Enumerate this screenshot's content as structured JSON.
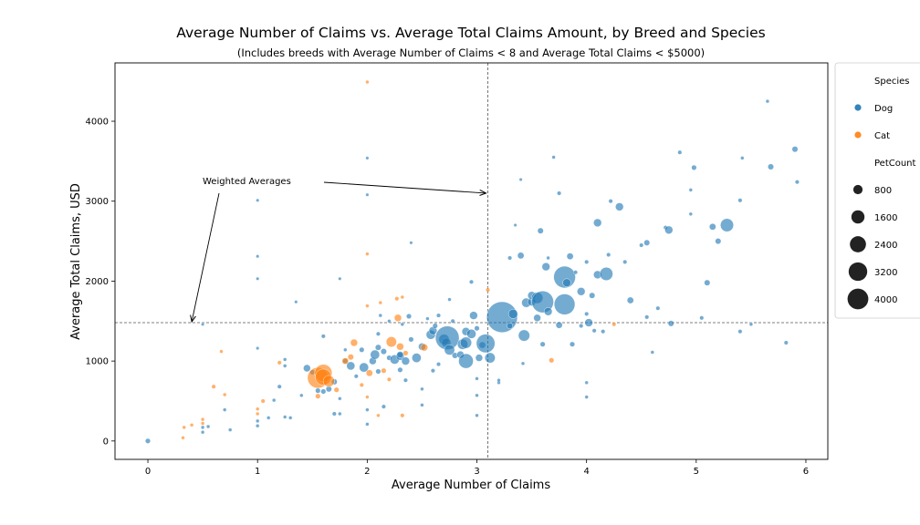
{
  "chart_data": {
    "type": "scatter",
    "title": "Average Number of Claims vs. Average Total Claims Amount, by Breed and Species",
    "subtitle": "(Includes breeds with Average Number of Claims < 8 and Average Total Claims < $5000)",
    "xlabel": "Average Number of Claims",
    "ylabel": "Average Total Claims, USD",
    "xlim": [
      -0.3,
      6.2
    ],
    "ylim": [
      -230,
      4730
    ],
    "xticks": [
      0,
      1,
      2,
      3,
      4,
      5,
      6
    ],
    "yticks": [
      0,
      1000,
      2000,
      3000,
      4000
    ],
    "grid": false,
    "reference_lines": {
      "x": 3.1,
      "y": 1480
    },
    "annotation": {
      "text": "Weighted Averages",
      "x": 0.5,
      "y": 3230
    },
    "legend": {
      "placement": "right",
      "species_title": "Species",
      "species": [
        {
          "name": "Dog",
          "color": "#1f77b4"
        },
        {
          "name": "Cat",
          "color": "#ff7f0e"
        }
      ],
      "size_title": "PetCount",
      "sizes": [
        800,
        1600,
        2400,
        3200,
        4000
      ]
    },
    "series": [
      {
        "name": "Dog",
        "color": "#1f77b4",
        "points": [
          [
            0,
            0,
            60
          ],
          [
            0.5,
            1460,
            20
          ],
          [
            0.7,
            390,
            30
          ],
          [
            0.75,
            140,
            30
          ],
          [
            0.5,
            170,
            30
          ],
          [
            0.5,
            110,
            30
          ],
          [
            0.55,
            180,
            30
          ],
          [
            1.0,
            3010,
            20
          ],
          [
            1.0,
            2310,
            20
          ],
          [
            1.0,
            2030,
            20
          ],
          [
            1.0,
            1160,
            20
          ],
          [
            1.0,
            250,
            30
          ],
          [
            1.0,
            190,
            30
          ],
          [
            1.1,
            290,
            30
          ],
          [
            1.15,
            510,
            30
          ],
          [
            1.2,
            680,
            40
          ],
          [
            1.25,
            940,
            30
          ],
          [
            1.25,
            1020,
            30
          ],
          [
            1.25,
            300,
            30
          ],
          [
            1.3,
            290,
            30
          ],
          [
            1.35,
            1740,
            20
          ],
          [
            1.4,
            570,
            30
          ],
          [
            1.45,
            910,
            120
          ],
          [
            1.5,
            860,
            60
          ],
          [
            1.55,
            630,
            60
          ],
          [
            1.6,
            1310,
            40
          ],
          [
            1.6,
            620,
            60
          ],
          [
            1.65,
            650,
            80
          ],
          [
            1.7,
            740,
            80
          ],
          [
            1.7,
            340,
            40
          ],
          [
            1.75,
            340,
            30
          ],
          [
            1.75,
            530,
            30
          ],
          [
            1.75,
            2030,
            20
          ],
          [
            1.8,
            1000,
            60
          ],
          [
            1.8,
            1140,
            30
          ],
          [
            1.85,
            940,
            160
          ],
          [
            1.9,
            810,
            40
          ],
          [
            1.95,
            1140,
            60
          ],
          [
            1.97,
            920,
            200
          ],
          [
            2.0,
            3540,
            20
          ],
          [
            2.0,
            3080,
            20
          ],
          [
            2.0,
            390,
            30
          ],
          [
            2.0,
            210,
            30
          ],
          [
            2.05,
            1000,
            120
          ],
          [
            2.07,
            1080,
            200
          ],
          [
            2.1,
            1340,
            40
          ],
          [
            2.1,
            1170,
            80
          ],
          [
            2.1,
            870,
            60
          ],
          [
            2.12,
            1570,
            30
          ],
          [
            2.15,
            1120,
            80
          ],
          [
            2.15,
            430,
            40
          ],
          [
            2.2,
            1500,
            30
          ],
          [
            2.2,
            1040,
            60
          ],
          [
            2.25,
            1020,
            200
          ],
          [
            2.3,
            1060,
            150
          ],
          [
            2.3,
            1080,
            100
          ],
          [
            2.3,
            890,
            60
          ],
          [
            2.32,
            1460,
            30
          ],
          [
            2.35,
            1000,
            150
          ],
          [
            2.35,
            760,
            40
          ],
          [
            2.38,
            1560,
            60
          ],
          [
            2.4,
            2480,
            20
          ],
          [
            2.4,
            1270,
            60
          ],
          [
            2.45,
            1040,
            200
          ],
          [
            2.5,
            1180,
            120
          ],
          [
            2.5,
            650,
            30
          ],
          [
            2.5,
            450,
            30
          ],
          [
            2.55,
            1530,
            30
          ],
          [
            2.58,
            1330,
            200
          ],
          [
            2.6,
            1380,
            150
          ],
          [
            2.6,
            880,
            40
          ],
          [
            2.62,
            1440,
            60
          ],
          [
            2.65,
            1570,
            40
          ],
          [
            2.65,
            960,
            40
          ],
          [
            2.7,
            1270,
            250
          ],
          [
            2.72,
            1230,
            200
          ],
          [
            2.73,
            1290,
            1300
          ],
          [
            2.75,
            1140,
            250
          ],
          [
            2.78,
            1500,
            40
          ],
          [
            2.75,
            1770,
            30
          ],
          [
            2.8,
            1070,
            80
          ],
          [
            2.85,
            1080,
            120
          ],
          [
            2.87,
            1210,
            250
          ],
          [
            2.9,
            1370,
            150
          ],
          [
            2.9,
            1230,
            300
          ],
          [
            2.9,
            1000,
            500
          ],
          [
            2.95,
            1990,
            40
          ],
          [
            2.95,
            1340,
            200
          ],
          [
            2.97,
            1570,
            150
          ],
          [
            3.0,
            780,
            30
          ],
          [
            3.0,
            570,
            30
          ],
          [
            3.0,
            320,
            30
          ],
          [
            3.0,
            1410,
            60
          ],
          [
            3.02,
            1040,
            120
          ],
          [
            3.05,
            1200,
            100
          ],
          [
            3.08,
            1220,
            800
          ],
          [
            3.12,
            1040,
            250
          ],
          [
            3.2,
            730,
            30
          ],
          [
            3.2,
            760,
            30
          ],
          [
            3.23,
            1550,
            2200
          ],
          [
            3.3,
            2290,
            40
          ],
          [
            3.3,
            1440,
            80
          ],
          [
            3.33,
            1590,
            200
          ],
          [
            3.35,
            2700,
            20
          ],
          [
            3.4,
            3270,
            20
          ],
          [
            3.4,
            2320,
            100
          ],
          [
            3.42,
            970,
            30
          ],
          [
            3.43,
            1320,
            300
          ],
          [
            3.45,
            1730,
            200
          ],
          [
            3.5,
            1740,
            150
          ],
          [
            3.5,
            1820,
            150
          ],
          [
            3.55,
            1790,
            300
          ],
          [
            3.55,
            1540,
            120
          ],
          [
            3.6,
            1740,
            1100
          ],
          [
            3.58,
            2630,
            80
          ],
          [
            3.6,
            1210,
            60
          ],
          [
            3.63,
            2180,
            150
          ],
          [
            3.65,
            2290,
            30
          ],
          [
            3.65,
            1620,
            150
          ],
          [
            3.7,
            3550,
            30
          ],
          [
            3.75,
            3100,
            40
          ],
          [
            3.75,
            1450,
            100
          ],
          [
            3.8,
            2050,
            1100
          ],
          [
            3.8,
            1710,
            1000
          ],
          [
            3.82,
            1980,
            150
          ],
          [
            3.85,
            2310,
            100
          ],
          [
            3.87,
            1210,
            60
          ],
          [
            3.9,
            2110,
            40
          ],
          [
            3.95,
            1870,
            150
          ],
          [
            3.95,
            1440,
            40
          ],
          [
            4.0,
            730,
            30
          ],
          [
            4.0,
            550,
            30
          ],
          [
            4.0,
            1590,
            40
          ],
          [
            4.0,
            2240,
            40
          ],
          [
            4.02,
            1480,
            150
          ],
          [
            4.05,
            1820,
            80
          ],
          [
            4.07,
            1380,
            40
          ],
          [
            4.1,
            2730,
            150
          ],
          [
            4.1,
            2080,
            150
          ],
          [
            4.15,
            1370,
            40
          ],
          [
            4.18,
            2090,
            400
          ],
          [
            4.2,
            2330,
            40
          ],
          [
            4.22,
            3000,
            40
          ],
          [
            4.3,
            2930,
            150
          ],
          [
            4.35,
            2240,
            40
          ],
          [
            4.4,
            1760,
            100
          ],
          [
            4.5,
            2450,
            40
          ],
          [
            4.55,
            2480,
            80
          ],
          [
            4.55,
            1550,
            40
          ],
          [
            4.6,
            1110,
            30
          ],
          [
            4.65,
            1660,
            40
          ],
          [
            4.72,
            2670,
            40
          ],
          [
            4.75,
            2640,
            150
          ],
          [
            4.77,
            1470,
            80
          ],
          [
            4.85,
            3610,
            40
          ],
          [
            4.95,
            2840,
            30
          ],
          [
            4.95,
            3140,
            30
          ],
          [
            4.98,
            3420,
            60
          ],
          [
            5.05,
            1540,
            40
          ],
          [
            5.1,
            1980,
            80
          ],
          [
            5.15,
            2680,
            100
          ],
          [
            5.2,
            2500,
            80
          ],
          [
            5.28,
            2700,
            400
          ],
          [
            5.4,
            3010,
            40
          ],
          [
            5.4,
            1370,
            40
          ],
          [
            5.42,
            3540,
            30
          ],
          [
            5.5,
            1460,
            30
          ],
          [
            5.65,
            4250,
            30
          ],
          [
            5.68,
            3430,
            80
          ],
          [
            5.82,
            1230,
            40
          ],
          [
            5.9,
            3650,
            80
          ],
          [
            5.92,
            3240,
            40
          ]
        ]
      },
      {
        "name": "Cat",
        "color": "#ff7f0e",
        "points": [
          [
            0.32,
            40,
            30
          ],
          [
            0.33,
            170,
            30
          ],
          [
            0.4,
            200,
            30
          ],
          [
            0.5,
            270,
            30
          ],
          [
            0.5,
            220,
            30
          ],
          [
            0.6,
            680,
            40
          ],
          [
            0.67,
            1120,
            30
          ],
          [
            0.7,
            580,
            30
          ],
          [
            1.0,
            400,
            30
          ],
          [
            1.0,
            340,
            30
          ],
          [
            1.05,
            500,
            40
          ],
          [
            1.2,
            980,
            40
          ],
          [
            1.55,
            790,
            1000
          ],
          [
            1.6,
            850,
            700
          ],
          [
            1.55,
            560,
            60
          ],
          [
            1.6,
            800,
            600
          ],
          [
            1.65,
            750,
            300
          ],
          [
            1.72,
            640,
            60
          ],
          [
            1.8,
            1000,
            100
          ],
          [
            1.85,
            1050,
            80
          ],
          [
            1.88,
            1230,
            120
          ],
          [
            1.95,
            700,
            40
          ],
          [
            2.0,
            4490,
            30
          ],
          [
            2.0,
            2340,
            30
          ],
          [
            2.0,
            1690,
            30
          ],
          [
            2.0,
            550,
            30
          ],
          [
            2.02,
            850,
            100
          ],
          [
            2.1,
            320,
            30
          ],
          [
            2.12,
            1730,
            30
          ],
          [
            2.15,
            880,
            60
          ],
          [
            2.2,
            770,
            40
          ],
          [
            2.22,
            1240,
            250
          ],
          [
            2.27,
            1780,
            40
          ],
          [
            2.28,
            1540,
            120
          ],
          [
            2.3,
            1180,
            120
          ],
          [
            2.32,
            1800,
            30
          ],
          [
            2.32,
            320,
            40
          ],
          [
            2.35,
            1100,
            60
          ],
          [
            2.52,
            1170,
            120
          ],
          [
            3.1,
            1890,
            40
          ],
          [
            3.68,
            1010,
            60
          ],
          [
            4.25,
            1460,
            40
          ]
        ]
      }
    ]
  }
}
